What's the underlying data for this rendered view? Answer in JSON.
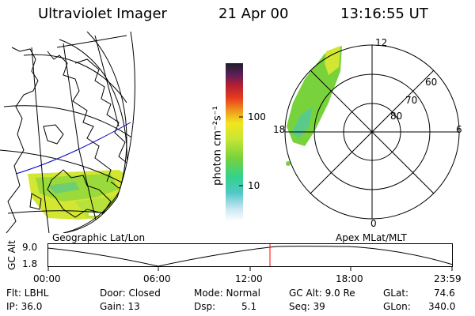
{
  "header": {
    "title": "Ultraviolet Imager",
    "date": "21 Apr 00",
    "time": "13:16:55 UT"
  },
  "colorbar": {
    "unit_label": "photon cm⁻²s⁻¹",
    "ticks": [
      "100",
      "10"
    ]
  },
  "polar_plot": {
    "mlt_labels": [
      "12",
      "18",
      "6",
      "0"
    ],
    "lat_labels": [
      "60",
      "70",
      "80"
    ]
  },
  "panel_labels": {
    "left": "Geographic Lat/Lon",
    "right": "Apex MLat/MLT"
  },
  "altitude_plot": {
    "ylabel": "GC Alt",
    "y_ticks": [
      "9.0",
      "1.8"
    ],
    "x_ticks": [
      "00:00",
      "06:00",
      "12:00",
      "18:00",
      "23:59"
    ]
  },
  "status": {
    "flt": "Flt: LBHL",
    "ip": "IP: 36.0",
    "door": "Door: Closed",
    "gain": "Gain: 13",
    "mode": "Mode: Normal",
    "dsp_label": "Dsp:",
    "dsp_value": "5.1",
    "gc_alt": "GC Alt: 9.0 Re",
    "seq": "Seq: 39",
    "glat_label": "GLat:",
    "glat_value": "74.6",
    "glon_label": "GLon:",
    "glon_value": "340.0"
  },
  "colors": {
    "cursor": "#ff0000",
    "latitude_line": "#0000c0",
    "aurora_green": "#78d23c",
    "aurora_yellow": "#d2e632"
  }
}
